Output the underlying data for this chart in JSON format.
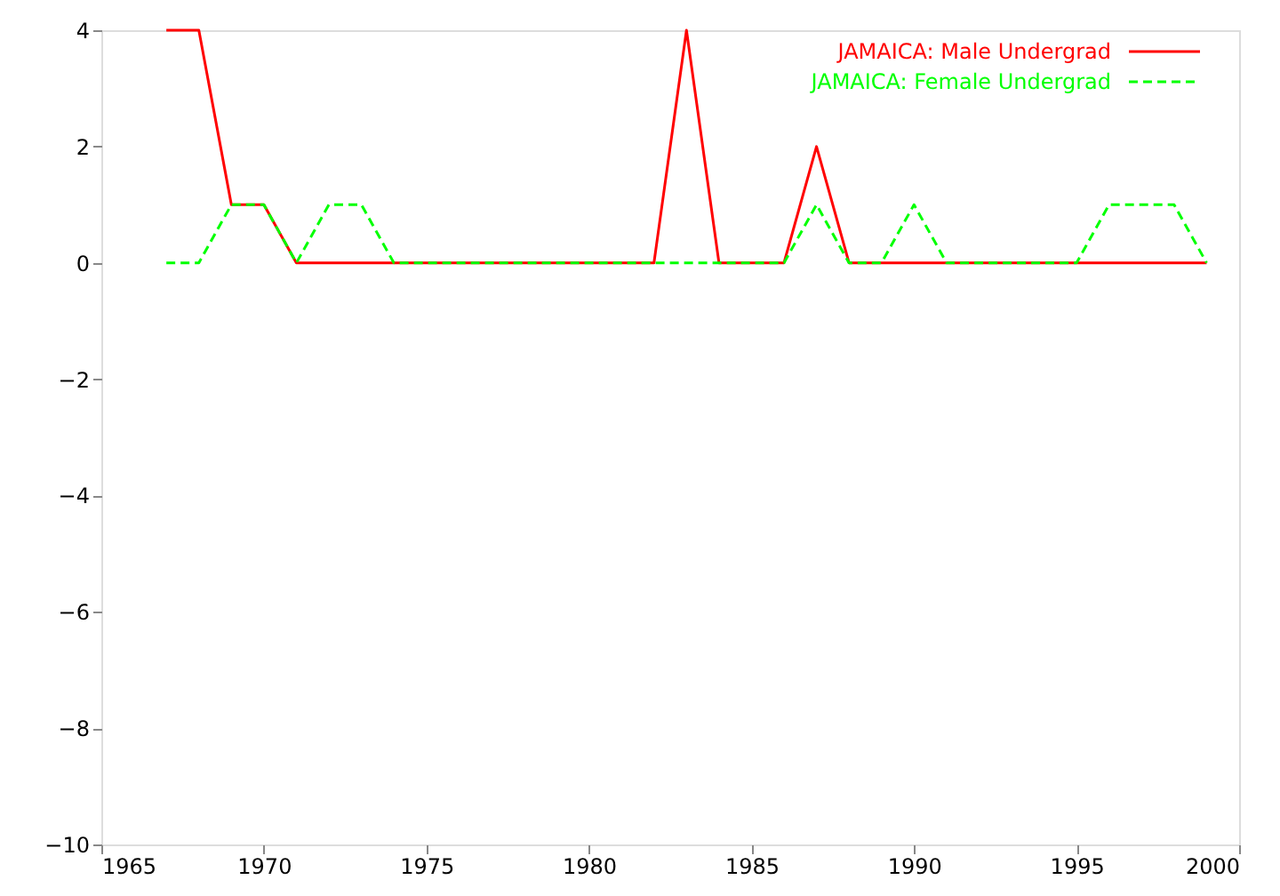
{
  "chart_data": {
    "type": "line",
    "x": [
      1967,
      1968,
      1969,
      1970,
      1971,
      1972,
      1973,
      1974,
      1975,
      1976,
      1977,
      1978,
      1979,
      1980,
      1981,
      1982,
      1983,
      1984,
      1985,
      1986,
      1987,
      1988,
      1989,
      1990,
      1991,
      1992,
      1993,
      1994,
      1995,
      1996,
      1997,
      1998,
      1999
    ],
    "series": [
      {
        "name": "JAMAICA: Male Undergrad",
        "color": "#ff0000",
        "line_style": "solid",
        "values": [
          4,
          4,
          1,
          1,
          0,
          0,
          0,
          0,
          0,
          0,
          0,
          0,
          0,
          0,
          0,
          0,
          4,
          0,
          0,
          0,
          2,
          0,
          0,
          0,
          0,
          0,
          0,
          0,
          0,
          0,
          0,
          0,
          0
        ]
      },
      {
        "name": "JAMAICA: Female Undergrad",
        "color": "#00ff00",
        "line_style": "dashed",
        "values": [
          0,
          0,
          1,
          1,
          0,
          1,
          1,
          0,
          0,
          0,
          0,
          0,
          0,
          0,
          0,
          0,
          0,
          0,
          0,
          0,
          1,
          0,
          0,
          1,
          0,
          0,
          0,
          0,
          0,
          1,
          1,
          1,
          0
        ]
      }
    ],
    "xlim": [
      1965,
      2000
    ],
    "xticks": [
      1965,
      1970,
      1975,
      1980,
      1985,
      1990,
      1995,
      2000
    ],
    "ylim": [
      -10,
      4
    ],
    "yticks": [
      -10,
      -8,
      -6,
      -4,
      -2,
      0,
      2,
      4
    ],
    "grid": false,
    "legend": "top right",
    "marker": "none"
  }
}
